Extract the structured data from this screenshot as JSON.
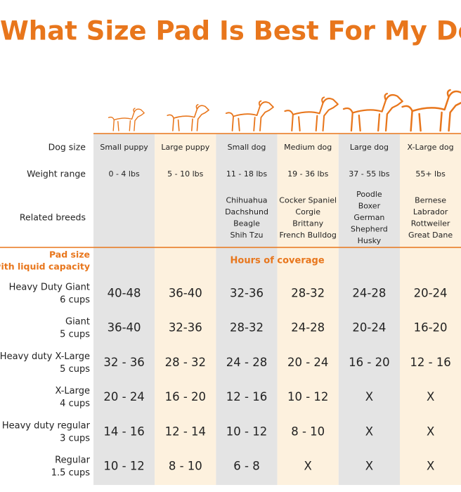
{
  "title": "What Size Pad Is Best For My Dog?",
  "labels": {
    "dog_size": "Dog size",
    "weight_range": "Weight range",
    "related_breeds": "Related breeds",
    "pad_size": [
      "Pad size",
      "with liquid capacity"
    ],
    "hours": "Hours of coverage"
  },
  "columns": [
    {
      "size": "Small puppy",
      "weight": "0 - 4 lbs",
      "breeds": []
    },
    {
      "size": "Large puppy",
      "weight": "5 - 10 lbs",
      "breeds": []
    },
    {
      "size": "Small dog",
      "weight": "11 - 18 lbs",
      "breeds": [
        "Chihuahua",
        "Dachshund",
        "Beagle",
        "Shih Tzu"
      ]
    },
    {
      "size": "Medium dog",
      "weight": "19 - 36 lbs",
      "breeds": [
        "Cocker Spaniel",
        "Corgie",
        "Brittany",
        "French Bulldog"
      ]
    },
    {
      "size": "Large dog",
      "weight": "37 - 55 lbs",
      "breeds": [
        "Poodle",
        "Boxer",
        "German",
        "Shepherd",
        "Husky"
      ]
    },
    {
      "size": "X-Large dog",
      "weight": "55+ lbs",
      "breeds": [
        "Bernese",
        "Labrador",
        "Rottweiler",
        "Great Dane"
      ]
    }
  ],
  "rows": [
    {
      "name": "Heavy Duty Giant",
      "capacity": "6 cups",
      "cells": [
        "40-48",
        "36-40",
        "32-36",
        "28-32",
        "24-28",
        "20-24"
      ]
    },
    {
      "name": "Giant",
      "capacity": "5 cups",
      "cells": [
        "36-40",
        "32-36",
        "28-32",
        "24-28",
        "20-24",
        "16-20"
      ]
    },
    {
      "name": "Heavy duty X-Large",
      "capacity": "5 cups",
      "cells": [
        "32 - 36",
        "28 - 32",
        "24 - 28",
        "20 - 24",
        "16 - 20",
        "12 - 16"
      ]
    },
    {
      "name": "X-Large",
      "capacity": "4 cups",
      "cells": [
        "20 - 24",
        "16 - 20",
        "12 - 16",
        "10 - 12",
        "X",
        "X"
      ]
    },
    {
      "name": "Heavy duty regular",
      "capacity": "3 cups",
      "cells": [
        "14 - 16",
        "12 - 14",
        "10 - 12",
        "8 - 10",
        "X",
        "X"
      ]
    },
    {
      "name": "Regular",
      "capacity": "1.5 cups",
      "cells": [
        "10 - 12",
        "8 - 10",
        "6 - 8",
        "X",
        "X",
        "X"
      ]
    }
  ]
}
